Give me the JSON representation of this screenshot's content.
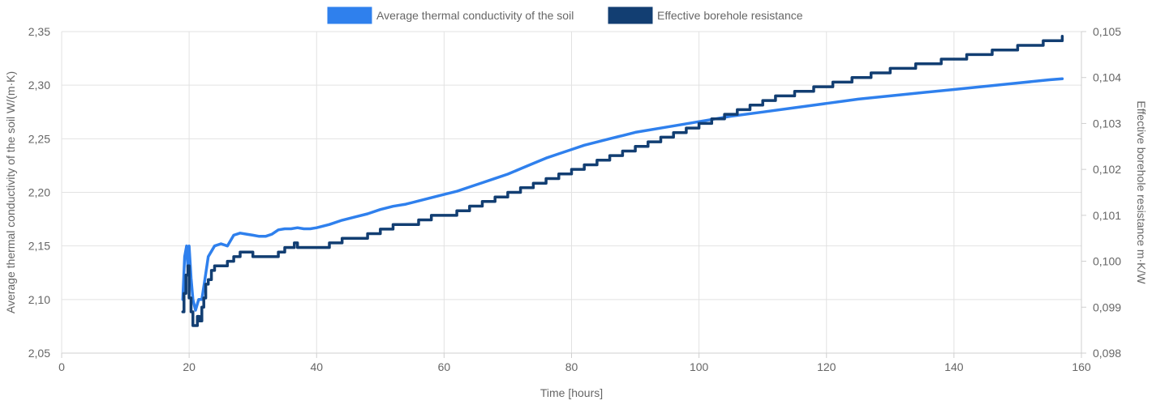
{
  "chart_data": {
    "type": "line",
    "xlabel": "Time [hours]",
    "xlim": [
      0,
      160
    ],
    "x_ticks": [
      0,
      20,
      40,
      60,
      80,
      100,
      120,
      140,
      160
    ],
    "x_tick_labels": [
      "0",
      "20",
      "40",
      "60",
      "80",
      "100",
      "120",
      "140",
      "160"
    ],
    "y_left": {
      "label": "Average thermal conductivity of the soil W/(m·K)",
      "lim": [
        2.05,
        2.35
      ],
      "ticks": [
        2.05,
        2.1,
        2.15,
        2.2,
        2.25,
        2.3,
        2.35
      ],
      "tick_labels": [
        "2,05",
        "2,10",
        "2,15",
        "2,20",
        "2,25",
        "2,30",
        "2,35"
      ]
    },
    "y_right": {
      "label": "Effective borehole resistance m·K/W",
      "lim": [
        0.098,
        0.105
      ],
      "ticks": [
        0.098,
        0.099,
        0.1,
        0.101,
        0.102,
        0.103,
        0.104,
        0.105
      ],
      "tick_labels": [
        "0,098",
        "0,099",
        "0,100",
        "0,101",
        "0,102",
        "0,103",
        "0,104",
        "0,105"
      ]
    },
    "grid": true,
    "legend_position": "top-center",
    "series": [
      {
        "name": "Average thermal conductivity of the soil",
        "axis": "left",
        "color": "#2f80ed",
        "x": [
          19.0,
          19.3,
          19.6,
          19.8,
          20.0,
          20.3,
          20.6,
          21.0,
          21.5,
          22.0,
          22.5,
          23.0,
          23.5,
          24.0,
          25.0,
          26.0,
          27.0,
          28.0,
          29.0,
          30.0,
          31.0,
          32.0,
          33.0,
          34.0,
          35.0,
          36.0,
          37.0,
          38.0,
          39.0,
          40.0,
          42.0,
          44.0,
          46.0,
          48.0,
          50.0,
          52.0,
          54.0,
          56.0,
          58.0,
          60.0,
          62.0,
          64.0,
          66.0,
          68.0,
          70.0,
          72.0,
          74.0,
          76.0,
          78.0,
          80.0,
          82.0,
          84.0,
          86.0,
          88.0,
          90.0,
          95.0,
          100.0,
          105.0,
          110.0,
          115.0,
          120.0,
          125.0,
          130.0,
          135.0,
          140.0,
          145.0,
          150.0,
          155.0,
          157.0
        ],
        "y": [
          2.1,
          2.14,
          2.15,
          2.13,
          2.15,
          2.12,
          2.1,
          2.09,
          2.1,
          2.1,
          2.12,
          2.14,
          2.145,
          2.15,
          2.152,
          2.15,
          2.16,
          2.162,
          2.161,
          2.16,
          2.159,
          2.159,
          2.161,
          2.165,
          2.166,
          2.166,
          2.167,
          2.166,
          2.166,
          2.167,
          2.17,
          2.174,
          2.177,
          2.18,
          2.184,
          2.187,
          2.189,
          2.192,
          2.195,
          2.198,
          2.201,
          2.205,
          2.209,
          2.213,
          2.217,
          2.222,
          2.227,
          2.232,
          2.236,
          2.24,
          2.244,
          2.247,
          2.25,
          2.253,
          2.256,
          2.261,
          2.266,
          2.271,
          2.275,
          2.279,
          2.283,
          2.287,
          2.29,
          2.293,
          2.296,
          2.299,
          2.302,
          2.305,
          2.306
        ]
      },
      {
        "name": "Effective borehole resistance",
        "axis": "right",
        "color": "#123e72",
        "x": [
          19.0,
          19.2,
          19.5,
          19.8,
          20.0,
          20.3,
          20.6,
          21.0,
          21.3,
          21.6,
          22.0,
          22.3,
          22.6,
          23.0,
          23.5,
          24.0,
          25.0,
          26.0,
          26.5,
          27.0,
          28.0,
          29.0,
          30.0,
          31.0,
          32.0,
          33.0,
          34.0,
          35.0,
          36.0,
          36.5,
          37.0,
          38.0,
          39.0,
          40.0,
          42.0,
          44.0,
          46.0,
          48.0,
          50.0,
          52.0,
          54.0,
          56.0,
          58.0,
          60.0,
          62.0,
          64.0,
          66.0,
          68.0,
          70.0,
          72.0,
          74.0,
          76.0,
          78.0,
          80.0,
          82.0,
          84.0,
          86.0,
          88.0,
          90.0,
          92.0,
          94.0,
          96.0,
          98.0,
          100.0,
          102.0,
          104.0,
          106.0,
          108.0,
          110.0,
          112.0,
          115.0,
          118.0,
          121.0,
          124.0,
          127.0,
          130.0,
          134.0,
          138.0,
          142.0,
          146.0,
          150.0,
          154.0,
          157.0
        ],
        "y": [
          0.0989,
          0.0993,
          0.0997,
          0.0999,
          0.0992,
          0.0989,
          0.0986,
          0.0986,
          0.0988,
          0.0987,
          0.099,
          0.0992,
          0.0995,
          0.0996,
          0.0998,
          0.0999,
          0.0999,
          0.1,
          0.1,
          0.1001,
          0.1002,
          0.1002,
          0.1001,
          0.1001,
          0.1001,
          0.1001,
          0.1002,
          0.1003,
          0.1003,
          0.1004,
          0.1003,
          0.1003,
          0.1003,
          0.1003,
          0.1004,
          0.1005,
          0.1005,
          0.1006,
          0.1007,
          0.1008,
          0.1008,
          0.1009,
          0.101,
          0.101,
          0.1011,
          0.1012,
          0.1013,
          0.1014,
          0.1015,
          0.1016,
          0.1017,
          0.1018,
          0.1019,
          0.102,
          0.1021,
          0.1022,
          0.1023,
          0.1024,
          0.1025,
          0.1026,
          0.1027,
          0.1028,
          0.1029,
          0.103,
          0.1031,
          0.1032,
          0.1033,
          0.1034,
          0.1035,
          0.1036,
          0.1037,
          0.1038,
          0.1039,
          0.104,
          0.1041,
          0.1042,
          0.1043,
          0.1044,
          0.1045,
          0.1046,
          0.1047,
          0.1048,
          0.1049
        ]
      }
    ]
  }
}
